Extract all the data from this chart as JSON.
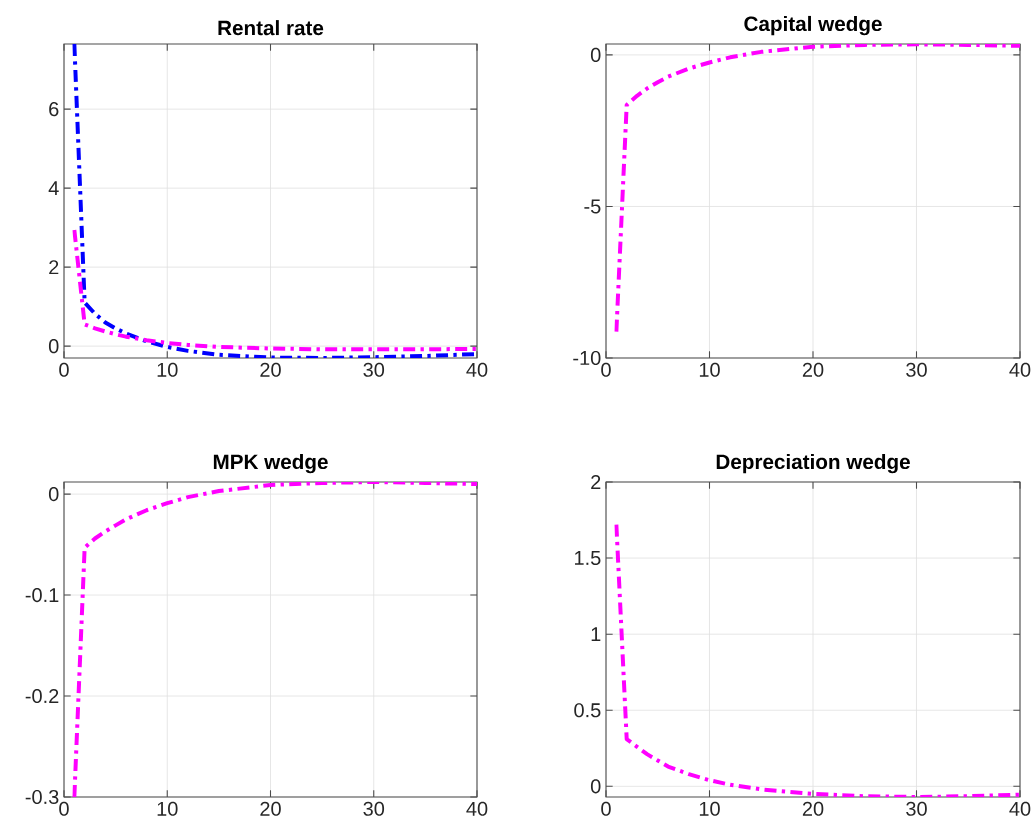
{
  "chart_data": [
    {
      "type": "line",
      "title": "Rental rate",
      "xlim": [
        0,
        40
      ],
      "ylim": [
        -0.3,
        7.65
      ],
      "xticks": [
        0,
        10,
        20,
        30,
        40
      ],
      "yticks": [
        0,
        2,
        4,
        6
      ],
      "grid": true,
      "line_style": "dashdot",
      "series": [
        {
          "color": "#0000ff",
          "x": [
            1,
            2,
            3,
            4,
            5,
            6,
            8,
            10,
            12,
            15,
            20,
            25,
            30,
            35,
            40
          ],
          "values": [
            7.65,
            1.1,
            0.82,
            0.6,
            0.45,
            0.32,
            0.12,
            -0.02,
            -0.12,
            -0.22,
            -0.29,
            -0.3,
            -0.28,
            -0.25,
            -0.2
          ]
        },
        {
          "color": "#ff00ff",
          "x": [
            1,
            2,
            3,
            4,
            5,
            6,
            8,
            10,
            12,
            15,
            20,
            25,
            30,
            35,
            40
          ],
          "values": [
            2.94,
            0.55,
            0.45,
            0.37,
            0.3,
            0.24,
            0.15,
            0.08,
            0.03,
            -0.02,
            -0.06,
            -0.08,
            -0.08,
            -0.08,
            -0.07
          ]
        }
      ]
    },
    {
      "type": "line",
      "title": "Capital wedge",
      "xlim": [
        0,
        40
      ],
      "ylim": [
        -10,
        0.36
      ],
      "xticks": [
        0,
        10,
        20,
        30,
        40
      ],
      "yticks": [
        -10,
        -5,
        0
      ],
      "grid": true,
      "line_style": "dashdot",
      "series": [
        {
          "color": "#ff00ff",
          "x": [
            1,
            2,
            3,
            4,
            5,
            6,
            8,
            10,
            12,
            15,
            20,
            25,
            30,
            35,
            40
          ],
          "values": [
            -9.13,
            -1.65,
            -1.35,
            -1.1,
            -0.9,
            -0.72,
            -0.45,
            -0.25,
            -0.08,
            0.1,
            0.27,
            0.33,
            0.35,
            0.33,
            0.3
          ]
        }
      ]
    },
    {
      "type": "line",
      "title": "MPK wedge",
      "xlim": [
        0,
        40
      ],
      "ylim": [
        -0.3,
        0.012
      ],
      "xticks": [
        0,
        10,
        20,
        30,
        40
      ],
      "yticks": [
        -0.3,
        -0.2,
        -0.1,
        0
      ],
      "grid": true,
      "line_style": "dashdot",
      "series": [
        {
          "color": "#ff00ff",
          "x": [
            1,
            2,
            3,
            4,
            5,
            6,
            8,
            10,
            12,
            15,
            20,
            25,
            30,
            35,
            40
          ],
          "values": [
            -0.3,
            -0.053,
            -0.044,
            -0.037,
            -0.031,
            -0.025,
            -0.016,
            -0.009,
            -0.003,
            0.003,
            0.009,
            0.011,
            0.012,
            0.011,
            0.01
          ]
        }
      ]
    },
    {
      "type": "line",
      "title": "Depreciation wedge",
      "xlim": [
        0,
        40
      ],
      "ylim": [
        -0.07,
        2
      ],
      "xticks": [
        0,
        10,
        20,
        30,
        40
      ],
      "yticks": [
        0,
        0.5,
        1,
        1.5,
        2
      ],
      "grid": true,
      "line_style": "dashdot",
      "series": [
        {
          "color": "#ff00ff",
          "x": [
            1,
            2,
            3,
            4,
            5,
            6,
            8,
            10,
            12,
            15,
            20,
            25,
            30,
            35,
            40
          ],
          "values": [
            1.72,
            0.31,
            0.26,
            0.21,
            0.17,
            0.13,
            0.08,
            0.04,
            0.01,
            -0.02,
            -0.05,
            -0.065,
            -0.07,
            -0.065,
            -0.055
          ]
        }
      ]
    }
  ]
}
